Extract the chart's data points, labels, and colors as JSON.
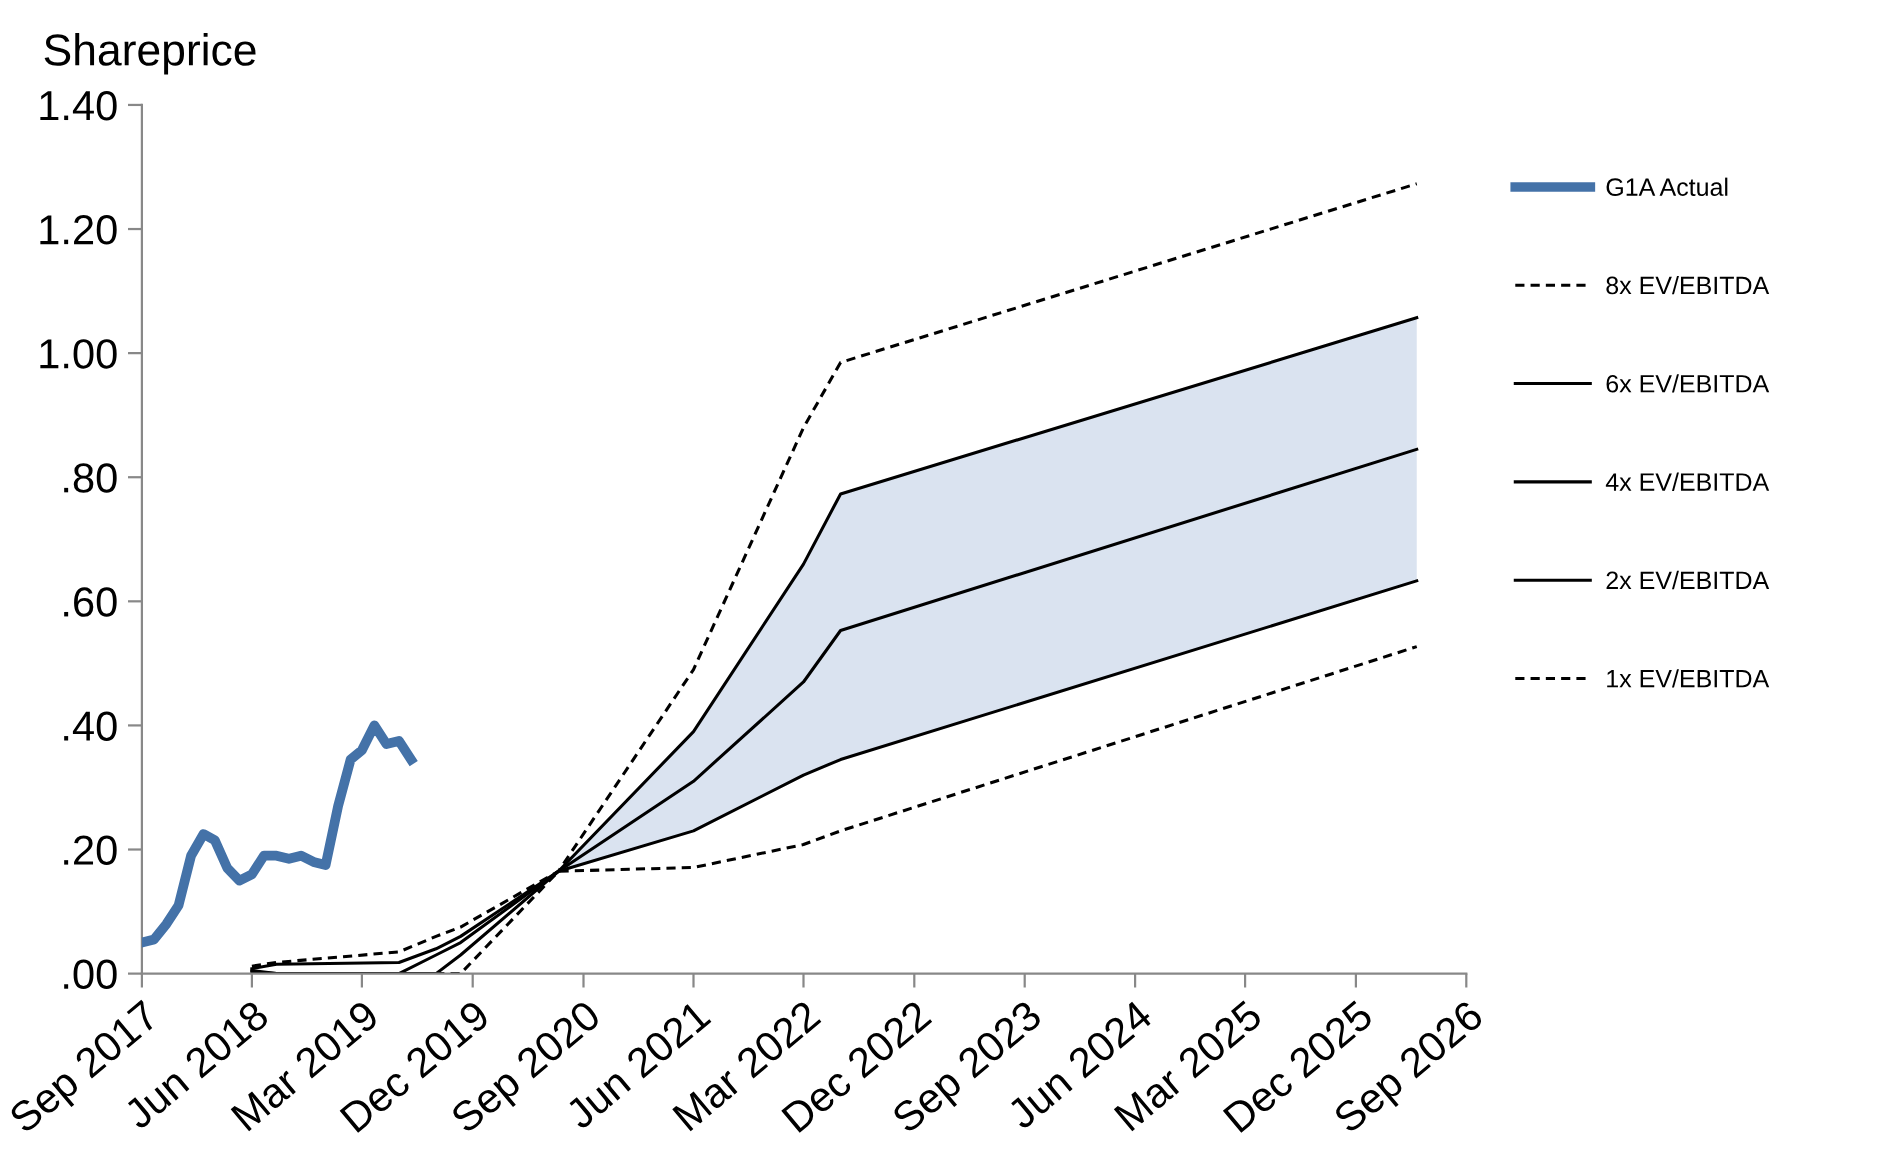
{
  "chart_data": {
    "type": "line",
    "ylabel": "Shareprice",
    "x": [
      "2018-06",
      "2018-08",
      "2019-06",
      "2019-09",
      "2019-11",
      "2020-07",
      "2021-06",
      "2022-03",
      "2022-06",
      "2026-05"
    ],
    "series": [
      {
        "name": "G1A Actual",
        "color": "#4472a8",
        "line_style": "solid",
        "x": [
          "2017-09",
          "2017-10",
          "2017-11",
          "2017-12",
          "2018-01",
          "2018-02",
          "2018-03",
          "2018-04",
          "2018-05",
          "2018-06",
          "2018-07",
          "2018-08",
          "2018-09",
          "2018-10",
          "2018-11",
          "2018-12",
          "2019-01",
          "2019-02",
          "2019-03",
          "2019-04",
          "2019-05",
          "2019-06",
          "2019-07"
        ],
        "values": [
          0.05,
          0.055,
          0.08,
          0.11,
          0.19,
          0.225,
          0.215,
          0.17,
          0.15,
          0.16,
          0.19,
          0.19,
          0.185,
          0.19,
          0.18,
          0.175,
          0.27,
          0.345,
          0.36,
          0.4,
          0.37,
          0.375,
          0.345
        ]
      },
      {
        "name": "8x EV/EBITDA",
        "color": "#000000",
        "line_style": "dashed",
        "values": [
          0.012,
          0.018,
          0.035,
          0.06,
          0.075,
          0.165,
          0.49,
          0.88,
          0.985,
          1.273
        ]
      },
      {
        "name": "6x EV/EBITDA",
        "color": "#000000",
        "line_style": "solid",
        "values": [
          0.008,
          0.015,
          0.018,
          0.04,
          0.06,
          0.165,
          0.39,
          0.66,
          0.773,
          1.057
        ]
      },
      {
        "name": "4x EV/EBITDA",
        "color": "#000000",
        "line_style": "solid",
        "values": [
          0.005,
          0.0,
          0.0,
          0.03,
          0.05,
          0.165,
          0.31,
          0.47,
          0.553,
          0.845
        ],
        "lower": [
          null,
          null,
          null,
          null,
          null,
          0.165,
          0.23,
          0.32,
          0.345,
          0.633
        ],
        "upper": [
          null,
          null,
          null,
          null,
          null,
          0.165,
          0.39,
          0.66,
          0.773,
          1.057
        ]
      },
      {
        "name": "2x EV/EBITDA",
        "color": "#000000",
        "line_style": "solid",
        "values": [
          0.003,
          0.0,
          0.0,
          0.0,
          0.03,
          0.165,
          0.23,
          0.32,
          0.345,
          0.633
        ]
      },
      {
        "name": "1x EV/EBITDA",
        "color": "#000000",
        "line_style": "dashed",
        "values": [
          0.0,
          0.0,
          0.0,
          0.0,
          0.0,
          0.165,
          0.171,
          0.208,
          0.23,
          0.527
        ]
      }
    ],
    "xlim": [
      "2017-09",
      "2026-09"
    ],
    "xticks": [
      {
        "value": "2017-09",
        "label": "Sep 2017"
      },
      {
        "value": "2018-06",
        "label": "Jun 2018"
      },
      {
        "value": "2019-03",
        "label": "Mar 2019"
      },
      {
        "value": "2019-12",
        "label": "Dec 2019"
      },
      {
        "value": "2020-09",
        "label": "Sep 2020"
      },
      {
        "value": "2021-06",
        "label": "Jun 2021"
      },
      {
        "value": "2022-03",
        "label": "Mar 2022"
      },
      {
        "value": "2022-12",
        "label": "Dec 2022"
      },
      {
        "value": "2023-09",
        "label": "Sep 2023"
      },
      {
        "value": "2024-06",
        "label": "Jun 2024"
      },
      {
        "value": "2025-03",
        "label": "Mar 2025"
      },
      {
        "value": "2025-12",
        "label": "Dec 2025"
      },
      {
        "value": "2026-09",
        "label": "Sep 2026"
      }
    ],
    "ylim": [
      0,
      1.4
    ],
    "yticks": [
      {
        "value": 0,
        "label": ".00"
      },
      {
        "value": 0.2,
        "label": ".20"
      },
      {
        "value": 0.4,
        "label": ".40"
      },
      {
        "value": 0.6,
        "label": ".60"
      },
      {
        "value": 0.8,
        "label": ".80"
      },
      {
        "value": 1.0,
        "label": "1.00"
      },
      {
        "value": 1.2,
        "label": "1.20"
      },
      {
        "value": 1.4,
        "label": "1.40"
      }
    ],
    "grid": false,
    "legend": "right",
    "marker": "none"
  }
}
